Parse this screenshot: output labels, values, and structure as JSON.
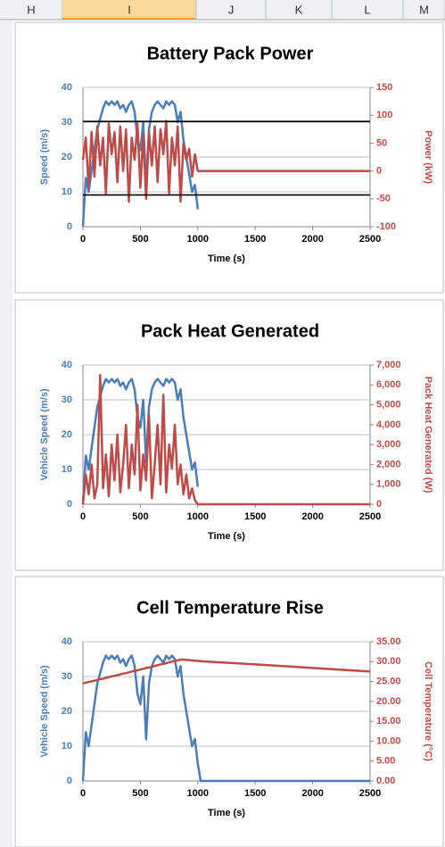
{
  "columns": [
    "H",
    "I",
    "J",
    "K",
    "L",
    "M"
  ],
  "chart_data": [
    {
      "type": "line",
      "title": "Battery Pack  Power",
      "x_label": "Time (s)",
      "y_label": "Speed (m/s)",
      "y2_label": "Power (kW)",
      "x": [
        0,
        25,
        50,
        75,
        100,
        125,
        150,
        175,
        200,
        225,
        250,
        275,
        300,
        325,
        350,
        375,
        400,
        425,
        450,
        475,
        500,
        525,
        550,
        575,
        600,
        625,
        650,
        675,
        700,
        725,
        750,
        775,
        800,
        825,
        850,
        875,
        900,
        925,
        950,
        975,
        1000,
        1025,
        1500,
        2000,
        2500
      ],
      "xlim": [
        0,
        2500
      ],
      "xticks": [
        0,
        500,
        1000,
        1500,
        2000,
        2500
      ],
      "ylim": [
        0,
        40
      ],
      "yticks": [
        0,
        10,
        20,
        30,
        40
      ],
      "y2lim": [
        -100,
        150
      ],
      "y2ticks": [
        -100,
        -50,
        0,
        50,
        100,
        150
      ],
      "grid": true,
      "series": [
        {
          "name": "Speed",
          "color": "#4a7ebb",
          "values": [
            0,
            14,
            10,
            16,
            22,
            28,
            31,
            34,
            36,
            35,
            36,
            35,
            36,
            34,
            35,
            33,
            35,
            36,
            33,
            25,
            22,
            30,
            12,
            28,
            33,
            35,
            36,
            35,
            34,
            36,
            35,
            36,
            35,
            30,
            33,
            25,
            20,
            15,
            10,
            12,
            5,
            null,
            null,
            null,
            null
          ]
        },
        {
          "name": "Power",
          "color": "#be4b48",
          "axis": "y2",
          "values": [
            20,
            60,
            -30,
            70,
            -10,
            80,
            10,
            60,
            -40,
            85,
            30,
            70,
            -20,
            80,
            0,
            75,
            -55,
            60,
            20,
            85,
            -30,
            65,
            -50,
            70,
            10,
            80,
            -20,
            75,
            30,
            90,
            -40,
            60,
            10,
            80,
            -55,
            50,
            20,
            40,
            -10,
            30,
            0,
            0,
            0,
            0,
            0
          ]
        },
        {
          "color": "#000000",
          "axis": "y2",
          "values": [
            89,
            89,
            89,
            89,
            89,
            89,
            89,
            89,
            89,
            89,
            89,
            89,
            89,
            89,
            89,
            89,
            89,
            89,
            89,
            89,
            89,
            89,
            89,
            89,
            89,
            89,
            89,
            89,
            89,
            89,
            89,
            89,
            89,
            89,
            89,
            89,
            89,
            89,
            89,
            89,
            89,
            89,
            89,
            89,
            89
          ]
        },
        {
          "color": "#000000",
          "axis": "y2",
          "values": [
            -43,
            -43,
            -43,
            -43,
            -43,
            -43,
            -43,
            -43,
            -43,
            -43,
            -43,
            -43,
            -43,
            -43,
            -43,
            -43,
            -43,
            -43,
            -43,
            -43,
            -43,
            -43,
            -43,
            -43,
            -43,
            -43,
            -43,
            -43,
            -43,
            -43,
            -43,
            -43,
            -43,
            -43,
            -43,
            -43,
            -43,
            -43,
            -43,
            -43,
            -43,
            -43,
            -43,
            -43,
            -43
          ]
        }
      ]
    },
    {
      "type": "line",
      "title": "Pack Heat Generated",
      "x_label": "Time (s)",
      "y_label": "Vehicle Speed (m/s)",
      "y2_label": "Pack Heat Generated (W)",
      "x": [
        0,
        25,
        50,
        75,
        100,
        125,
        150,
        175,
        200,
        225,
        250,
        275,
        300,
        325,
        350,
        375,
        400,
        425,
        450,
        475,
        500,
        525,
        550,
        575,
        600,
        625,
        650,
        675,
        700,
        725,
        750,
        775,
        800,
        825,
        850,
        875,
        900,
        925,
        950,
        975,
        1000,
        1025,
        1500,
        2000,
        2500
      ],
      "xlim": [
        0,
        2500
      ],
      "xticks": [
        0,
        500,
        1000,
        1500,
        2000,
        2500
      ],
      "ylim": [
        0,
        40
      ],
      "yticks": [
        0,
        10,
        20,
        30,
        40
      ],
      "y2lim": [
        0,
        7000
      ],
      "y2ticks": [
        0,
        {
          "value": 1000,
          "label": "1,000"
        },
        {
          "value": 2000,
          "label": "2,000"
        },
        {
          "value": 3000,
          "label": "3,000"
        },
        {
          "value": 4000,
          "label": "4,000"
        },
        {
          "value": 5000,
          "label": "5,000"
        },
        {
          "value": 6000,
          "label": "6,000"
        },
        {
          "value": 7000,
          "label": "7,000"
        }
      ],
      "grid": true,
      "series": [
        {
          "name": "Vehicle Speed",
          "color": "#4a7ebb",
          "values": [
            0,
            14,
            10,
            16,
            22,
            28,
            31,
            34,
            36,
            35,
            36,
            35,
            36,
            34,
            35,
            33,
            35,
            36,
            33,
            25,
            22,
            30,
            12,
            28,
            33,
            35,
            36,
            35,
            34,
            36,
            35,
            36,
            35,
            30,
            33,
            25,
            20,
            15,
            10,
            12,
            5,
            null,
            null,
            null,
            null
          ]
        },
        {
          "name": "Pack Heat Generated",
          "color": "#be4b48",
          "axis": "y2",
          "values": [
            0,
            1500,
            500,
            2000,
            300,
            1000,
            6500,
            800,
            2500,
            400,
            3000,
            1200,
            3500,
            600,
            2000,
            4000,
            800,
            3000,
            1500,
            5000,
            700,
            2500,
            1200,
            4500,
            300,
            2000,
            4000,
            1000,
            5500,
            600,
            3000,
            1800,
            4000,
            1000,
            2000,
            500,
            1500,
            300,
            800,
            200,
            0,
            0,
            0,
            0,
            0
          ]
        }
      ]
    },
    {
      "type": "line",
      "title": "Cell Temperature Rise",
      "x_label": "Time (s)",
      "y_label": "Vehicle Speed (m/s)",
      "y2_label": "Cell Temperature (°C)",
      "x": [
        0,
        25,
        50,
        75,
        100,
        125,
        150,
        175,
        200,
        225,
        250,
        275,
        300,
        325,
        350,
        375,
        400,
        425,
        450,
        475,
        500,
        525,
        550,
        575,
        600,
        625,
        650,
        675,
        700,
        725,
        750,
        775,
        800,
        825,
        850,
        875,
        900,
        925,
        950,
        975,
        1000,
        1025,
        1500,
        2000,
        2500
      ],
      "xlim": [
        0,
        2500
      ],
      "xticks": [
        0,
        500,
        1000,
        1500,
        2000,
        2500
      ],
      "ylim": [
        0,
        40
      ],
      "yticks": [
        0,
        10,
        20,
        30,
        40
      ],
      "y2lim": [
        0,
        35
      ],
      "y2ticks": [
        {
          "value": 0,
          "label": "0.00"
        },
        {
          "value": 5,
          "label": "5.00"
        },
        {
          "value": 10,
          "label": "10.00"
        },
        {
          "value": 15,
          "label": "15.00"
        },
        {
          "value": 20,
          "label": "20.00"
        },
        {
          "value": 25,
          "label": "25.00"
        },
        {
          "value": 30,
          "label": "30.00"
        },
        {
          "value": 35,
          "label": "35.00"
        }
      ],
      "grid": true,
      "series": [
        {
          "name": "Vehicle Speed",
          "color": "#4a7ebb",
          "values": [
            0,
            14,
            10,
            16,
            22,
            28,
            31,
            34,
            36,
            35,
            36,
            35,
            36,
            34,
            35,
            33,
            35,
            36,
            33,
            25,
            22,
            30,
            12,
            28,
            33,
            35,
            36,
            35,
            34,
            36,
            35,
            36,
            35,
            30,
            33,
            25,
            20,
            15,
            10,
            12,
            5,
            0,
            0,
            0,
            0
          ]
        },
        {
          "name": "Cell Temperature",
          "color": "#be4b48",
          "axis": "y2",
          "values": [
            24.5,
            24.7,
            24.9,
            25.0,
            25.2,
            25.4,
            25.6,
            25.7,
            25.9,
            26.1,
            26.3,
            26.4,
            26.6,
            26.8,
            27.0,
            27.1,
            27.3,
            27.5,
            27.7,
            27.8,
            28.0,
            28.2,
            28.4,
            28.5,
            28.7,
            28.9,
            29.1,
            29.3,
            29.4,
            29.6,
            29.8,
            30.0,
            30.2,
            30.3,
            30.5,
            30.5,
            30.4,
            30.4,
            30.3,
            30.2,
            30.2,
            30.1,
            29.3,
            28.4,
            27.5
          ]
        }
      ]
    }
  ]
}
